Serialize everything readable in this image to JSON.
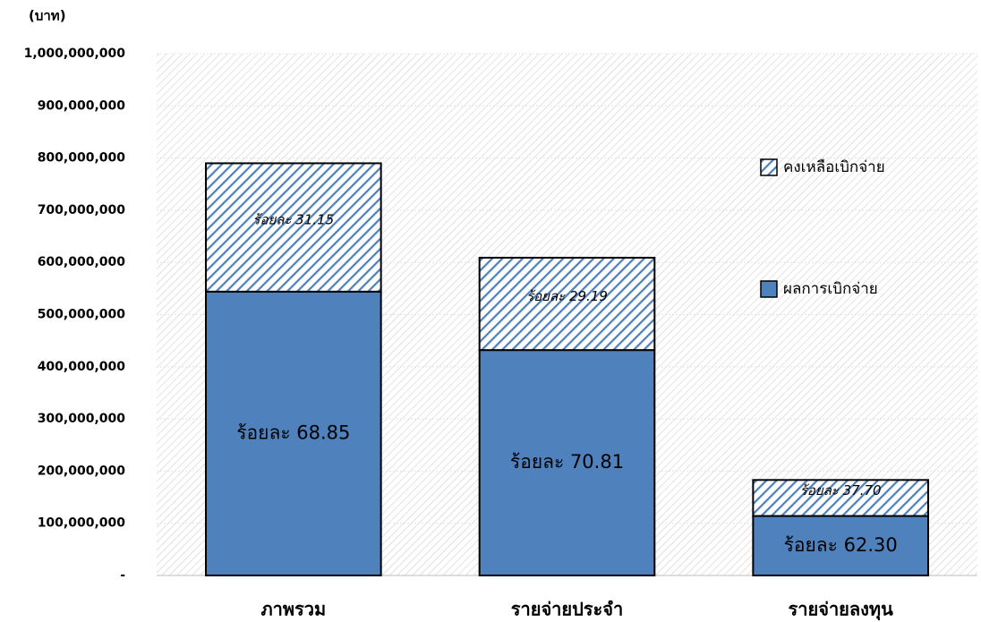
{
  "chart_data": {
    "type": "stacked_bar",
    "y_unit_label": "(บาท)",
    "categories": [
      "ภาพรวม",
      "รายจ่ายประจำ",
      "รายจ่ายลงทุน"
    ],
    "series": [
      {
        "name": "ผลการเบิกจ่าย",
        "color": "#4f81bd",
        "pattern": "solid",
        "values": [
          544000000,
          432000000,
          114000000
        ],
        "percent_labels": [
          "ร้อยละ 68.85",
          "ร้อยละ 70.81",
          "ร้อยละ 62.30"
        ]
      },
      {
        "name": "คงเหลือเบิกจ่าย",
        "color": "#4f81bd",
        "pattern": "hatch",
        "values": [
          246000000,
          177000000,
          69000000
        ],
        "percent_labels": [
          "ร้อยละ 31.15",
          "ร้อยละ 29.19",
          "ร้อยละ 37.70"
        ]
      }
    ],
    "ylim": [
      0,
      1000000000
    ],
    "yticks": [
      {
        "value": 0,
        "label": "-"
      },
      {
        "value": 100000000,
        "label": "100,000,000"
      },
      {
        "value": 200000000,
        "label": "200,000,000"
      },
      {
        "value": 300000000,
        "label": "300,000,000"
      },
      {
        "value": 400000000,
        "label": "400,000,000"
      },
      {
        "value": 500000000,
        "label": "500,000,000"
      },
      {
        "value": 600000000,
        "label": "600,000,000"
      },
      {
        "value": 700000000,
        "label": "700,000,000"
      },
      {
        "value": 800000000,
        "label": "800,000,000"
      },
      {
        "value": 900000000,
        "label": "900,000,000"
      },
      {
        "value": 1000000000,
        "label": "1,000,000,000"
      }
    ],
    "grid": true,
    "legend": "right"
  }
}
